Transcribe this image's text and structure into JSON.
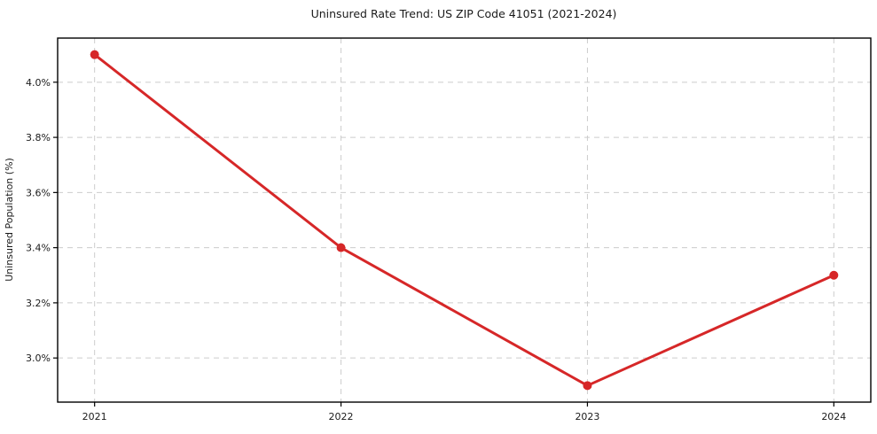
{
  "chart_data": {
    "type": "line",
    "title": "Uninsured Rate Trend: US ZIP Code 41051 (2021-2024)",
    "xlabel": "",
    "ylabel": "Uninsured Population (%)",
    "x": [
      2021,
      2022,
      2023,
      2024
    ],
    "x_tick_labels": [
      "2021",
      "2022",
      "2023",
      "2024"
    ],
    "series": [
      {
        "name": "uninsured-rate",
        "values": [
          4.1,
          3.4,
          2.9,
          3.3
        ]
      }
    ],
    "y_tick_values": [
      3.0,
      3.2,
      3.4,
      3.6,
      3.8,
      4.0
    ],
    "y_tick_labels": [
      "3.0%",
      "3.2%",
      "3.4%",
      "3.6%",
      "3.8%",
      "4.0%"
    ],
    "xlim": [
      2020.85,
      2024.15
    ],
    "ylim": [
      2.84,
      4.16
    ],
    "grid": "dashed",
    "legend": "none",
    "colors": {
      "line": "#d62728",
      "marker": "#d62728",
      "grid": "#cccccc",
      "spine": "#000000",
      "text": "#1a1a1a",
      "background": "#ffffff"
    }
  }
}
